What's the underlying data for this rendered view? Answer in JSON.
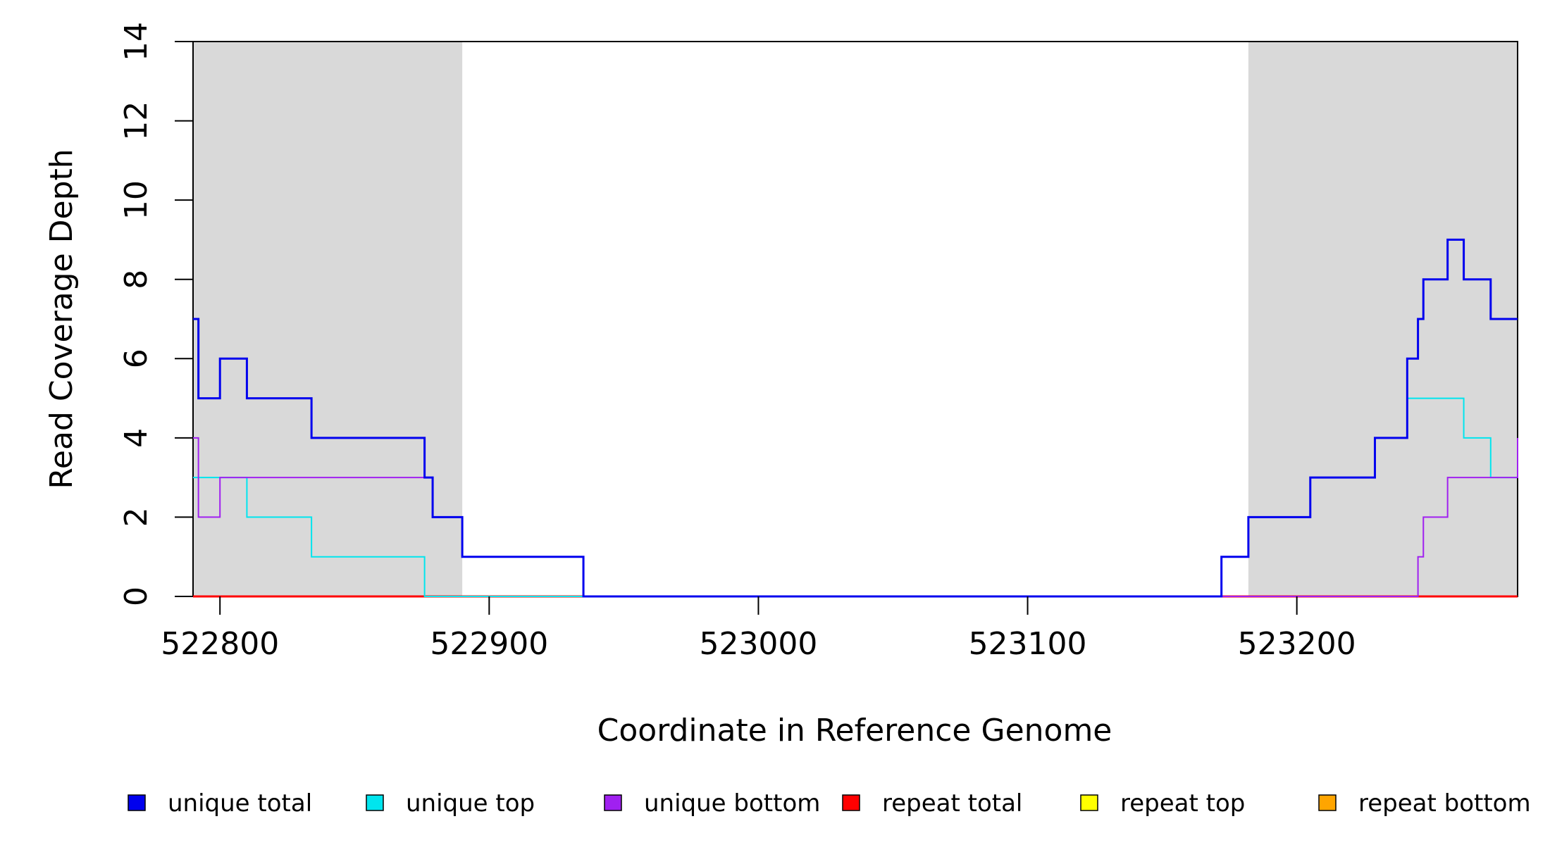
{
  "chart_data": {
    "type": "line",
    "step": true,
    "xlabel": "Coordinate in Reference Genome",
    "ylabel": "Read Coverage Depth",
    "xlim": [
      522790,
      523282
    ],
    "ylim": [
      0,
      14
    ],
    "xticks": [
      522800,
      522900,
      523000,
      523100,
      523200
    ],
    "xtick_labels": [
      "522800",
      "522900",
      "523000",
      "523100",
      "523200"
    ],
    "yticks": [
      0,
      2,
      4,
      6,
      8,
      10,
      12,
      14
    ],
    "ytick_labels": [
      "0",
      "2",
      "4",
      "6",
      "8",
      "10",
      "12",
      "14"
    ],
    "shaded_regions": [
      [
        522790,
        522890
      ],
      [
        523182,
        523282
      ]
    ],
    "series": [
      {
        "name": "unique total",
        "color": "#0000ee",
        "x": [
          522790,
          522792,
          522800,
          522810,
          522834,
          522876,
          522879,
          522890,
          522935,
          523172,
          523182,
          523205,
          523229,
          523241,
          523245,
          523247,
          523256,
          523262,
          523272,
          523282
        ],
        "values": [
          7,
          5,
          6,
          5,
          4,
          3,
          2,
          1,
          0,
          1,
          2,
          3,
          4,
          6,
          7,
          8,
          9,
          8,
          7,
          7
        ]
      },
      {
        "name": "unique top",
        "color": "#00e5ee",
        "x": [
          522790,
          522810,
          522834,
          522876,
          522935,
          523172,
          523182,
          523205,
          523229,
          523241,
          523262,
          523272,
          523282
        ],
        "values": [
          3,
          2,
          1,
          0,
          0,
          1,
          2,
          3,
          4,
          5,
          4,
          3,
          3
        ]
      },
      {
        "name": "unique bottom",
        "color": "#a020f0",
        "x": [
          522790,
          522792,
          522800,
          522876,
          522879,
          522890,
          522935,
          523241,
          523245,
          523247,
          523256,
          523282
        ],
        "values": [
          4,
          2,
          3,
          3,
          2,
          1,
          0,
          0,
          1,
          2,
          3,
          4
        ]
      },
      {
        "name": "repeat total",
        "color": "#ff0000",
        "x": [
          522790,
          523282
        ],
        "values": [
          0,
          0
        ]
      },
      {
        "name": "repeat top",
        "color": "#ffff00",
        "x": [
          522790,
          523282
        ],
        "values": [
          0,
          0
        ]
      },
      {
        "name": "repeat bottom",
        "color": "#ffa500",
        "x": [
          522790,
          523282
        ],
        "values": [
          0,
          0
        ]
      }
    ],
    "legend": {
      "position": "bottom",
      "entries": [
        "unique total",
        "unique top",
        "unique bottom",
        "repeat total",
        "repeat top",
        "repeat bottom"
      ]
    }
  }
}
